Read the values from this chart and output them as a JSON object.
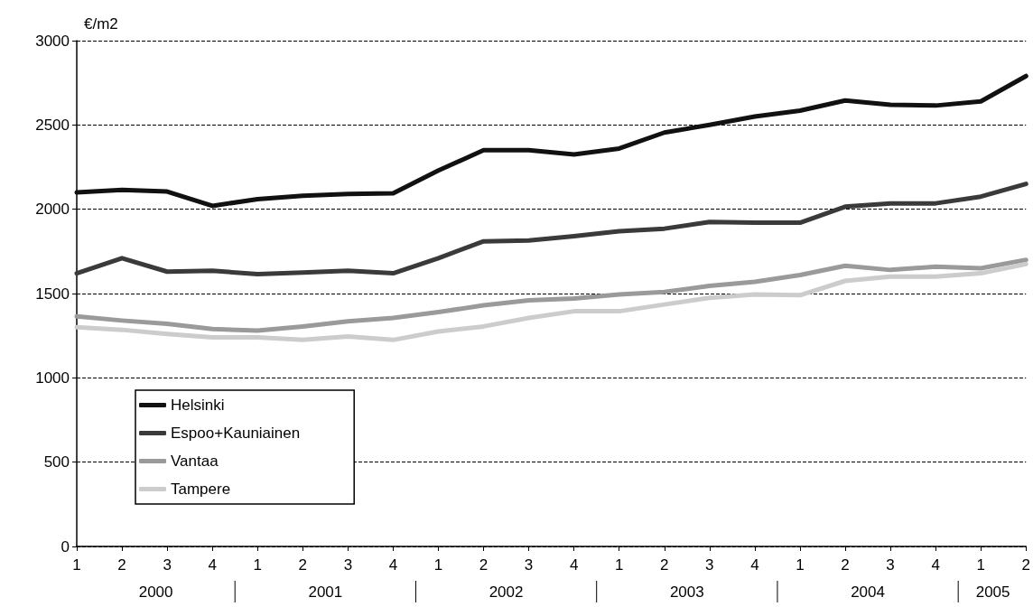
{
  "chart_data": {
    "type": "line",
    "ylabel": "€/m2",
    "categories": [
      "1",
      "2",
      "3",
      "4",
      "1",
      "2",
      "3",
      "4",
      "1",
      "2",
      "3",
      "4",
      "1",
      "2",
      "3",
      "4",
      "1",
      "2",
      "3",
      "4",
      "1",
      "2"
    ],
    "annotations": [
      "2000",
      "2001",
      "2002",
      "2003",
      "2004",
      "2005"
    ],
    "series": [
      {
        "name": "Helsinki",
        "color": "#111111",
        "values": [
          2100,
          2115,
          2105,
          2020,
          2060,
          2080,
          2090,
          2095,
          2230,
          2350,
          2350,
          2325,
          2360,
          2455,
          2500,
          2550,
          2585,
          2645,
          2620,
          2615,
          2640,
          2790
        ]
      },
      {
        "name": "Espoo+Kauniainen",
        "color": "#3a3a3a",
        "values": [
          1620,
          1710,
          1630,
          1635,
          1615,
          1625,
          1635,
          1620,
          1710,
          1810,
          1815,
          1840,
          1870,
          1885,
          1925,
          1920,
          1920,
          2015,
          2035,
          2035,
          2075,
          2150
        ]
      },
      {
        "name": "Vantaa",
        "color": "#9a9a9a",
        "values": [
          1365,
          1340,
          1320,
          1290,
          1280,
          1305,
          1335,
          1355,
          1390,
          1430,
          1460,
          1470,
          1495,
          1510,
          1545,
          1570,
          1610,
          1665,
          1640,
          1660,
          1650,
          1700
        ]
      },
      {
        "name": "Tampere",
        "color": "#cccccc",
        "values": [
          1300,
          1285,
          1260,
          1240,
          1240,
          1225,
          1245,
          1225,
          1275,
          1305,
          1355,
          1395,
          1395,
          1435,
          1475,
          1495,
          1490,
          1575,
          1600,
          1600,
          1620,
          1675
        ]
      }
    ],
    "ylim": [
      0,
      3000
    ],
    "yticks": [
      0,
      500,
      1000,
      1500,
      2000,
      2500,
      3000
    ],
    "grid": "y",
    "legend": "bottom left",
    "marker": "none",
    "line_style": "solid"
  }
}
